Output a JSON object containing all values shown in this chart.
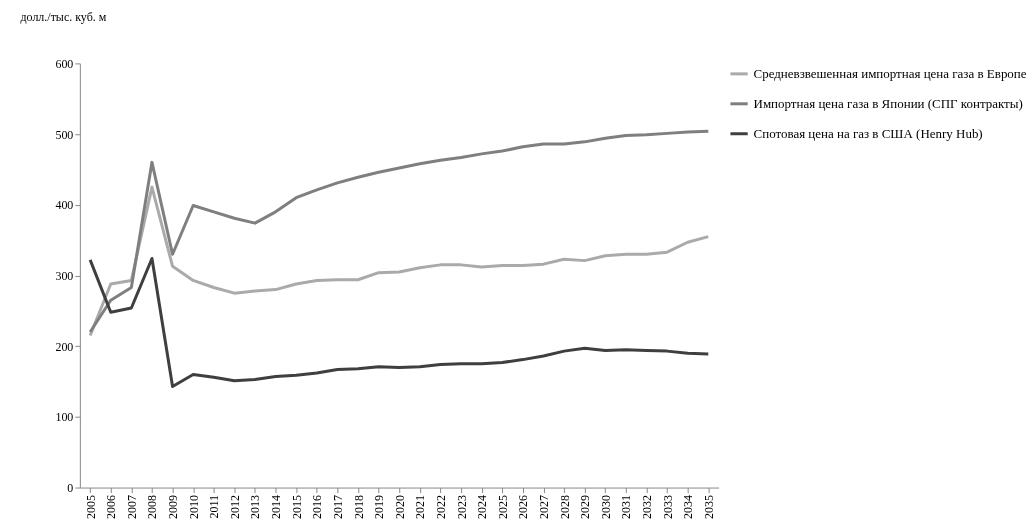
{
  "chart_data": {
    "type": "line",
    "ylabel": "долл./тыс. куб. м",
    "categories": [
      "2005",
      "2006",
      "2007",
      "2008",
      "2009",
      "2010",
      "2011",
      "2012",
      "2013",
      "2014",
      "2015",
      "2016",
      "2017",
      "2018",
      "2019",
      "2020",
      "2021",
      "2022",
      "2023",
      "2024",
      "2025",
      "2026",
      "2027",
      "2028",
      "2029",
      "2030",
      "2031",
      "2032",
      "2033",
      "2034",
      "2035"
    ],
    "series": [
      {
        "name": "Средневзвешенная импортная цена газа в Европе",
        "color": "#aaaaaa",
        "values": [
          215,
          288,
          293,
          425,
          313,
          293,
          283,
          275,
          278,
          280,
          288,
          293,
          294,
          294,
          304,
          305,
          311,
          315,
          315,
          312,
          314,
          314,
          316,
          323,
          321,
          328,
          330,
          330,
          333,
          347,
          355
        ]
      },
      {
        "name": "Импортная цена газа в Японии (СПГ контракты)",
        "color": "#7f7f7f",
        "values": [
          220,
          265,
          283,
          460,
          330,
          399,
          390,
          381,
          374,
          390,
          410,
          421,
          431,
          439,
          446,
          452,
          458,
          463,
          467,
          472,
          476,
          482,
          486,
          486,
          489,
          494,
          498,
          499,
          501,
          503,
          504
        ]
      },
      {
        "name": "Спотовая цена на газ в США (Henry Hub)",
        "color": "#3f3f3f",
        "values": [
          322,
          248,
          254,
          324,
          143,
          160,
          156,
          151,
          153,
          157,
          159,
          162,
          167,
          168,
          171,
          170,
          171,
          174,
          175,
          175,
          177,
          181,
          186,
          193,
          197,
          194,
          195,
          194,
          193,
          190,
          189
        ]
      }
    ],
    "ylim": [
      0,
      600
    ],
    "yticks": [
      0,
      100,
      200,
      300,
      400,
      500,
      600
    ],
    "grid": false,
    "legend": "right",
    "marker": "none",
    "line_style": "solid"
  }
}
